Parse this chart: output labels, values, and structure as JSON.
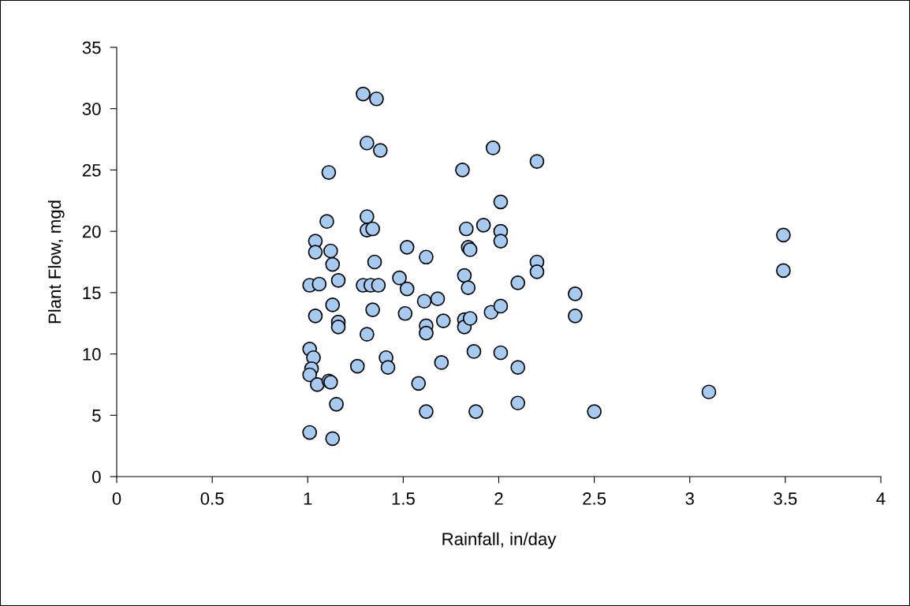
{
  "chart_data": {
    "type": "scatter",
    "xlabel": "Rainfall, in/day",
    "ylabel": "Plant Flow, mgd",
    "x": [
      1.29,
      1.36,
      1.31,
      1.38,
      1.11,
      1.81,
      1.97,
      2.2,
      2.01,
      1.1,
      1.31,
      1.31,
      1.34,
      1.04,
      1.04,
      1.12,
      1.13,
      1.35,
      1.52,
      1.62,
      1.83,
      1.92,
      2.01,
      2.01,
      1.84,
      1.85,
      2.2,
      2.2,
      2.1,
      3.49,
      3.49,
      2.4,
      2.4,
      1.01,
      1.06,
      1.16,
      1.29,
      1.33,
      1.37,
      1.48,
      1.52,
      1.61,
      1.68,
      1.82,
      1.84,
      1.13,
      1.04,
      1.34,
      1.51,
      1.16,
      1.16,
      1.62,
      1.62,
      1.71,
      1.82,
      1.82,
      1.85,
      1.96,
      2.01,
      1.31,
      1.01,
      1.03,
      1.02,
      1.01,
      1.05,
      1.11,
      1.12,
      1.41,
      1.42,
      1.26,
      1.7,
      1.87,
      2.01,
      2.1,
      1.58,
      1.15,
      1.62,
      1.88,
      2.1,
      2.5,
      3.1,
      1.01,
      1.13
    ],
    "values": [
      31.2,
      30.8,
      27.2,
      26.6,
      24.8,
      25.0,
      26.8,
      25.7,
      22.4,
      20.8,
      21.2,
      20.1,
      20.2,
      19.2,
      18.3,
      18.4,
      17.3,
      17.5,
      18.7,
      17.9,
      20.2,
      20.5,
      20.0,
      19.2,
      18.7,
      18.5,
      17.5,
      16.7,
      15.8,
      19.7,
      16.8,
      13.1,
      14.9,
      15.6,
      15.7,
      16.0,
      15.6,
      15.6,
      15.6,
      16.2,
      15.3,
      14.3,
      14.5,
      16.4,
      15.4,
      14.0,
      13.1,
      13.6,
      13.3,
      12.6,
      12.2,
      12.3,
      11.7,
      12.7,
      12.8,
      12.2,
      12.9,
      13.4,
      13.9,
      11.6,
      10.4,
      9.7,
      8.8,
      8.3,
      7.5,
      7.8,
      7.7,
      9.7,
      8.9,
      9.0,
      9.3,
      10.2,
      10.1,
      8.9,
      7.6,
      5.9,
      5.3,
      5.3,
      6.0,
      5.3,
      6.9,
      3.6,
      3.1
    ],
    "color": "#a6caf0",
    "marker": "circle",
    "xlim": [
      0,
      4
    ],
    "xticks": [
      0,
      0.5,
      1,
      1.5,
      2,
      2.5,
      3,
      3.5,
      4
    ],
    "ylim": [
      0,
      35
    ],
    "yticks": [
      0,
      5,
      10,
      15,
      20,
      25,
      30,
      35
    ],
    "grid": false,
    "legend": false
  }
}
